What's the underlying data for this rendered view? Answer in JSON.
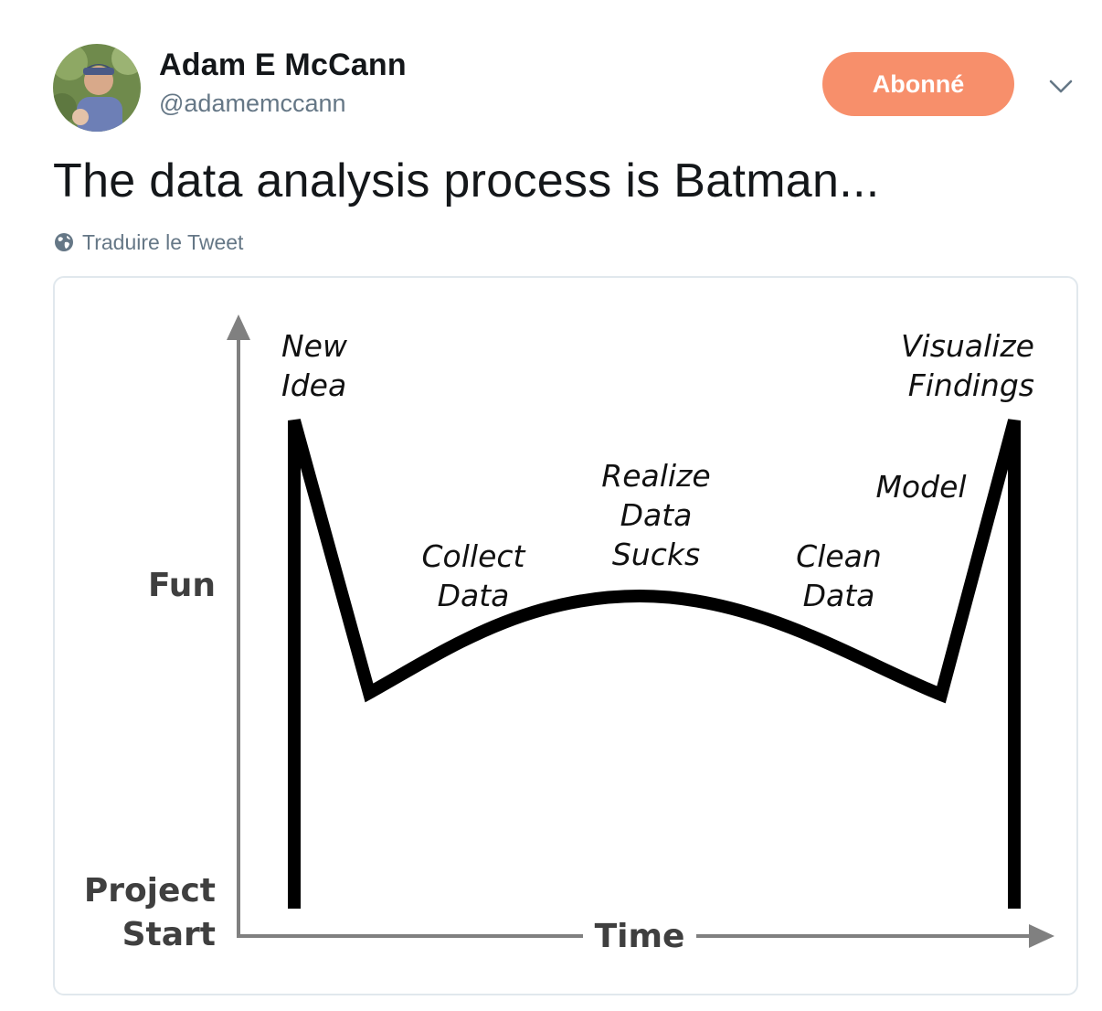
{
  "user": {
    "display_name": "Adam E McCann",
    "handle": "@adamemccann"
  },
  "follow_button": {
    "label": "Abonné",
    "color": "#f78f6b"
  },
  "tweet": {
    "text": "The data analysis process is Batman...",
    "translate_label": "Traduire le Tweet",
    "translate_icon": "globe-icon",
    "menu_icon": "chevron-down-icon"
  },
  "image": {
    "y_axis_label": "Fun",
    "origin_label_line1": "Project",
    "origin_label_line2": "Start",
    "x_axis_label": "Time",
    "stages": {
      "new_idea": [
        "New",
        "Idea"
      ],
      "collect_data": [
        "Collect",
        "Data"
      ],
      "realize_data_sucks": [
        "Realize",
        "Data",
        "Sucks"
      ],
      "clean_data": [
        "Clean",
        "Data"
      ],
      "model": [
        "Model"
      ],
      "visualize_findings": [
        "Visualize",
        "Findings"
      ]
    }
  },
  "colors": {
    "text_primary": "#14171a",
    "text_secondary": "#657786",
    "border": "#e1e8ed",
    "axis": "#808080",
    "curve": "#000000"
  }
}
